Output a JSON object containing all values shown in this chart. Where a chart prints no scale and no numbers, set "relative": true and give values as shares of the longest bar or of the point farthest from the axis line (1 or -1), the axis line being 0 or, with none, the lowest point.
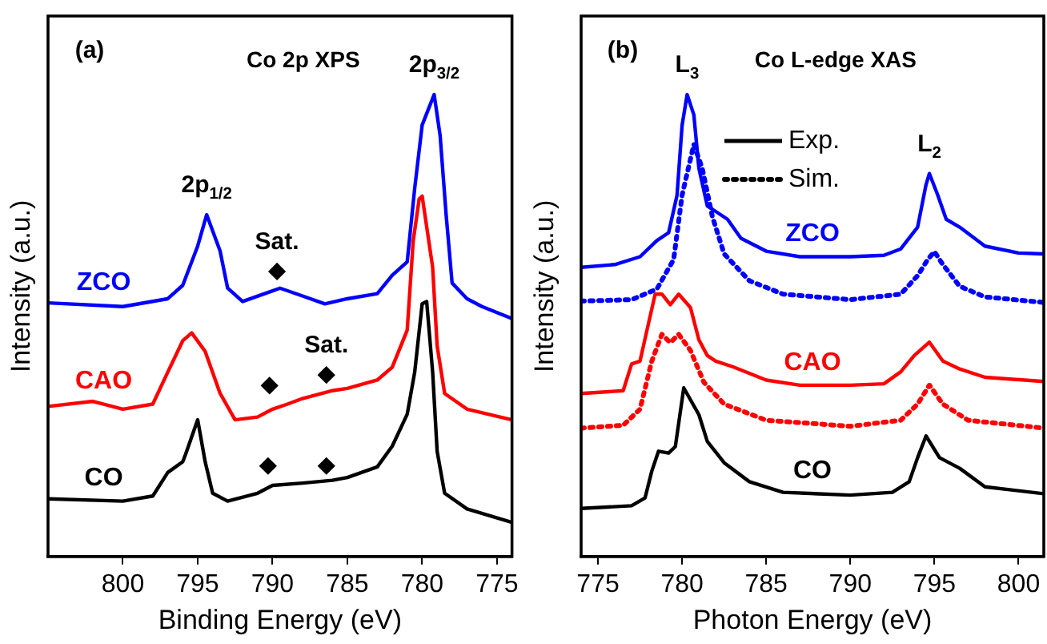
{
  "chart_data": [
    {
      "type": "line",
      "title": "Co 2p XPS",
      "xlabel": "Binding Energy (eV)",
      "ylabel": "Intensity (a.u.)",
      "relative": true,
      "tick_labels": "x",
      "marker": "none",
      "xlim": [
        805,
        774
      ],
      "xticks": [
        800,
        795,
        790,
        785,
        780,
        775
      ],
      "annotations": [
        "(a)",
        {
          "text": "2p$_{1/2}$",
          "x": 794.4,
          "y": 0.74
        },
        {
          "text": "2p$_{3/2}$",
          "x": 779.2,
          "y": 1
        },
        {
          "text": "Sat.",
          "x": 789.7,
          "y": 0.617
        },
        {
          "text": "Sat.",
          "x": 786.4,
          "y": 0.393
        }
      ],
      "series": [
        {
          "name": "ZCO",
          "color": "#0000ff",
          "x": [
            805,
            800,
            797,
            796,
            795,
            794.4,
            793.5,
            793,
            792,
            790,
            789.5,
            788,
            786.5,
            785,
            783,
            782,
            781,
            780.5,
            780,
            779.2,
            778.8,
            778.4,
            778,
            777,
            776,
            774
          ],
          "values": [
            0.549,
            0.541,
            0.558,
            0.587,
            0.672,
            0.74,
            0.661,
            0.581,
            0.552,
            0.575,
            0.581,
            0.564,
            0.547,
            0.558,
            0.569,
            0.609,
            0.638,
            0.797,
            0.934,
            1,
            0.911,
            0.74,
            0.592,
            0.558,
            0.541,
            0.515
          ]
        },
        {
          "name": "CAO",
          "color": "#ff0000",
          "x": [
            805,
            802,
            800,
            798,
            797,
            796,
            795.4,
            794.5,
            793.5,
            792.5,
            791,
            790,
            789,
            788,
            786,
            785,
            783,
            782,
            781,
            780.6,
            780.2,
            780,
            779.3,
            779,
            778.5,
            777,
            774
          ],
          "values": [
            0.325,
            0.336,
            0.319,
            0.33,
            0.399,
            0.467,
            0.484,
            0.444,
            0.353,
            0.296,
            0.302,
            0.319,
            0.33,
            0.342,
            0.359,
            0.364,
            0.382,
            0.41,
            0.49,
            0.683,
            0.774,
            0.78,
            0.626,
            0.456,
            0.353,
            0.319,
            0.296
          ]
        },
        {
          "name": "CO",
          "color": "#000000",
          "x": [
            805,
            800,
            798,
            797,
            796,
            795.8,
            795,
            794.5,
            794,
            793,
            791,
            790,
            788,
            786,
            785,
            783,
            782,
            781,
            780.5,
            780,
            779.7,
            779.3,
            779,
            778.5,
            777,
            774
          ],
          "values": [
            0.125,
            0.12,
            0.131,
            0.182,
            0.205,
            0.222,
            0.296,
            0.205,
            0.137,
            0.12,
            0.137,
            0.154,
            0.159,
            0.165,
            0.171,
            0.194,
            0.239,
            0.308,
            0.399,
            0.547,
            0.552,
            0.399,
            0.228,
            0.137,
            0.103,
            0.074
          ]
        },
        {
          "type": "scatter",
          "marker": "diamond",
          "color": "#000000",
          "x": [
            789.7,
            790.2,
            786.4,
            790.3,
            786.4
          ],
          "values": [
            0.617,
            0.37,
            0.393,
            0.196,
            0.196
          ]
        }
      ]
    },
    {
      "type": "line",
      "title": "Co L-edge XAS",
      "xlabel": "Photon Energy (eV)",
      "ylabel": "Intensity (a.u.)",
      "relative": true,
      "tick_labels": "x",
      "marker": "none",
      "legend": "top",
      "xlim": [
        774,
        801.5
      ],
      "xticks": [
        775,
        780,
        785,
        790,
        795,
        800
      ],
      "annotations": [
        "(b)",
        {
          "text": "L$_{3}$",
          "x": 780.3,
          "y": 1
        },
        {
          "text": "L$_{2}$",
          "x": 794.7,
          "y": 0.829
        }
      ],
      "series": [
        {
          "name": "ZCO",
          "color": "#0000ff",
          "line_style": "solid",
          "x": [
            774,
            776,
            777.5,
            778.5,
            779.2,
            779.7,
            780,
            780.3,
            780.7,
            781,
            781.5,
            782,
            782.7,
            783.5,
            785,
            787,
            790,
            792,
            793,
            794,
            794.5,
            794.7,
            795.2,
            795.7,
            796.5,
            798,
            800,
            801.5
          ],
          "values": [
            0.626,
            0.632,
            0.649,
            0.684,
            0.701,
            0.782,
            0.933,
            1,
            0.956,
            0.84,
            0.759,
            0.747,
            0.73,
            0.689,
            0.661,
            0.649,
            0.649,
            0.652,
            0.666,
            0.713,
            0.805,
            0.829,
            0.782,
            0.73,
            0.713,
            0.672,
            0.657,
            0.655
          ]
        },
        {
          "color": "#0000ff",
          "line_style": "dotted",
          "x": [
            774,
            777,
            778.5,
            779.5,
            780,
            780.7,
            781.2,
            781.8,
            782.5,
            784,
            786,
            790,
            793,
            794,
            794.6,
            795,
            795.5,
            796.5,
            798,
            801.5
          ],
          "values": [
            0.553,
            0.556,
            0.579,
            0.643,
            0.782,
            0.892,
            0.84,
            0.736,
            0.655,
            0.597,
            0.568,
            0.556,
            0.568,
            0.608,
            0.643,
            0.66,
            0.632,
            0.585,
            0.562,
            0.55
          ]
        },
        {
          "name": "CAO",
          "color": "#ff0000",
          "line_style": "solid",
          "x": [
            774,
            776.5,
            777,
            777.5,
            778,
            778.4,
            778.8,
            779.3,
            779.8,
            780.5,
            781,
            781.5,
            782,
            783,
            785,
            787,
            790,
            792,
            793,
            793.8,
            794.7,
            795.5,
            796.5,
            798,
            801.5
          ],
          "values": [
            0.353,
            0.359,
            0.417,
            0.423,
            0.504,
            0.568,
            0.568,
            0.545,
            0.568,
            0.539,
            0.469,
            0.435,
            0.423,
            0.411,
            0.382,
            0.371,
            0.371,
            0.374,
            0.4,
            0.435,
            0.464,
            0.423,
            0.406,
            0.388,
            0.379
          ]
        },
        {
          "color": "#ff0000",
          "line_style": "dotted",
          "x": [
            774,
            776.5,
            777.5,
            778.2,
            778.8,
            779.3,
            779.8,
            780.5,
            781.3,
            782.5,
            785,
            790,
            793,
            794,
            794.7,
            795.5,
            797,
            801.5
          ],
          "values": [
            0.278,
            0.284,
            0.319,
            0.423,
            0.481,
            0.463,
            0.481,
            0.446,
            0.377,
            0.33,
            0.295,
            0.282,
            0.295,
            0.33,
            0.371,
            0.33,
            0.295,
            0.278
          ]
        },
        {
          "name": "CO",
          "color": "#000000",
          "line_style": "solid",
          "x": [
            774,
            777,
            777.8,
            778.2,
            778.6,
            779.2,
            779.6,
            780.1,
            781,
            781.5,
            782.5,
            784,
            786,
            790,
            792.5,
            793.5,
            794,
            794.5,
            795.3,
            796.5,
            798,
            801.5
          ],
          "values": [
            0.104,
            0.11,
            0.127,
            0.185,
            0.228,
            0.224,
            0.238,
            0.365,
            0.307,
            0.249,
            0.203,
            0.162,
            0.139,
            0.133,
            0.139,
            0.162,
            0.214,
            0.261,
            0.214,
            0.191,
            0.151,
            0.136
          ]
        },
        {
          "name": "Exp.",
          "color": "#000000",
          "line_style": "solid"
        },
        {
          "name": "Sim.",
          "color": "#000000",
          "line_style": "dotted"
        }
      ]
    }
  ]
}
